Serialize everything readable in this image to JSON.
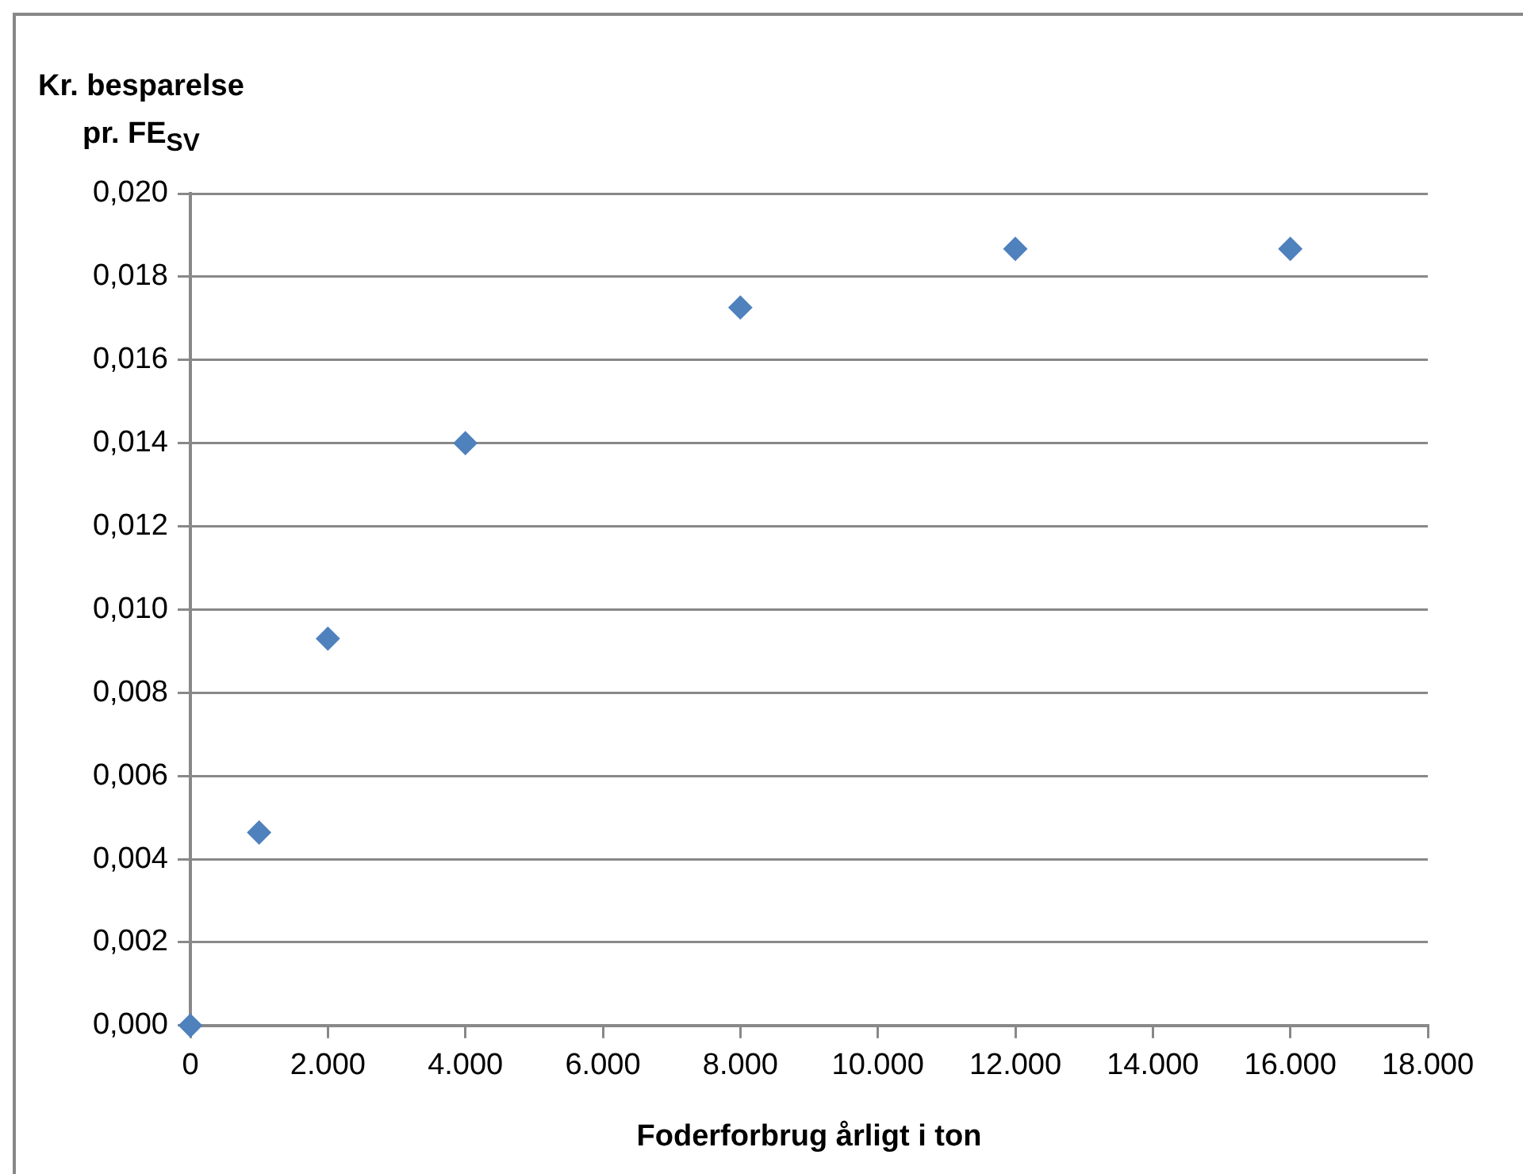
{
  "chart_data": {
    "type": "scatter",
    "ylabel": "Kr. besparelse\npr. FE$_{SV}$",
    "xlabel": "Foderforbrug årligt i ton",
    "x": [
      0,
      1000,
      2000,
      4000,
      8000,
      12000,
      16000
    ],
    "series": [
      {
        "color": "#4f81bd",
        "values": [
          0,
          0.00464,
          0.0093,
          0.014,
          0.01726,
          0.01867,
          0.01867
        ]
      }
    ],
    "marker": "diamond",
    "grid": "y",
    "legend": false,
    "xlim": [
      0,
      18000
    ],
    "xticks": [
      {
        "value": 0,
        "label": "0"
      },
      {
        "value": 2000,
        "label": "2.000"
      },
      {
        "value": 4000,
        "label": "4.000"
      },
      {
        "value": 6000,
        "label": "6.000"
      },
      {
        "value": 8000,
        "label": "8.000"
      },
      {
        "value": 10000,
        "label": "10.000"
      },
      {
        "value": 12000,
        "label": "12.000"
      },
      {
        "value": 14000,
        "label": "14.000"
      },
      {
        "value": 16000,
        "label": "16.000"
      },
      {
        "value": 18000,
        "label": "18.000"
      }
    ],
    "ylim": [
      0,
      0.02
    ],
    "yticks": [
      {
        "value": 0,
        "label": "0,000"
      },
      {
        "value": 0.002,
        "label": "0,002"
      },
      {
        "value": 0.004,
        "label": "0,004"
      },
      {
        "value": 0.006,
        "label": "0,006"
      },
      {
        "value": 0.008,
        "label": "0,008"
      },
      {
        "value": 0.01,
        "label": "0,010"
      },
      {
        "value": 0.012,
        "label": "0,012"
      },
      {
        "value": 0.014,
        "label": "0,014"
      },
      {
        "value": 0.016,
        "label": "0,016"
      },
      {
        "value": 0.018,
        "label": "0,018"
      },
      {
        "value": 0.02,
        "label": "0,020"
      }
    ]
  }
}
